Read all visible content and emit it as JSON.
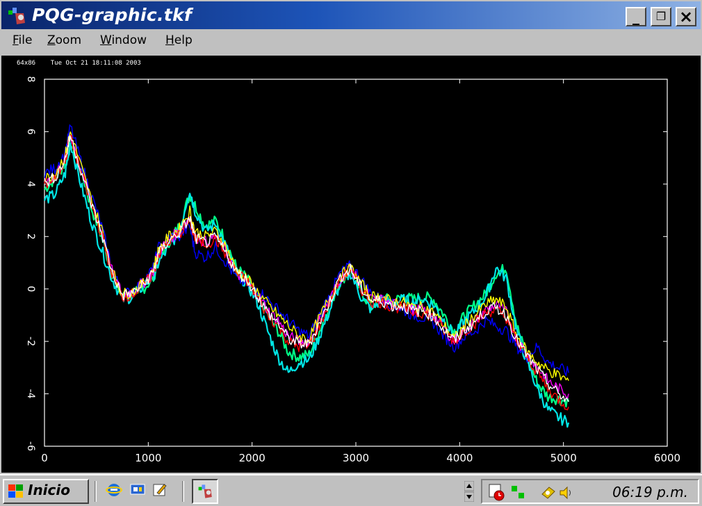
{
  "window": {
    "title": "PQG-graphic.tkf",
    "controls": {
      "minimize": "_",
      "maximize": "❐",
      "close": "×"
    }
  },
  "menu": [
    "File",
    "Zoom",
    "Window",
    "Help"
  ],
  "chart_header": "64x86    Tue Oct 21 18:11:08 2003",
  "chart_data": {
    "type": "line",
    "xlim": [
      0,
      6000
    ],
    "ylim": [
      -6,
      8
    ],
    "x_ticks": [
      "0",
      "1000",
      "2000",
      "3000",
      "4000",
      "5000",
      "6000"
    ],
    "y_ticks": [
      "-6",
      "-4",
      "-2",
      "0",
      "2",
      "4",
      "6",
      "8"
    ],
    "grid": false,
    "background": "#000000",
    "series_colors": [
      "#00ff88",
      "#00e5e5",
      "#0000ff",
      "#ff00ff",
      "#ffff00",
      "#ff0000",
      "#ffffff"
    ],
    "series": [
      {
        "color": "#00ff88",
        "x": [
          0,
          100,
          200,
          250,
          350,
          450,
          550,
          650,
          750,
          850,
          950,
          1050,
          1100,
          1200,
          1300,
          1400,
          1450,
          1550,
          1650,
          1750,
          1850,
          1950,
          2050,
          2150,
          2250,
          2350,
          2450,
          2550,
          2650,
          2750,
          2850,
          2950,
          3050,
          3150,
          3250,
          3350,
          3450,
          3550,
          3650,
          3750,
          3850,
          3950,
          4050,
          4150,
          4250,
          4350,
          4450,
          4550,
          4650,
          4750,
          4850,
          4950,
          5050
        ],
        "y": [
          3.8,
          4.2,
          4.8,
          5.5,
          4.6,
          3.1,
          2.0,
          0.6,
          -0.3,
          -0.2,
          0.0,
          0.4,
          1.2,
          1.8,
          2.4,
          3.6,
          3.2,
          2.4,
          2.6,
          1.8,
          0.8,
          0.4,
          -0.3,
          -1.0,
          -1.6,
          -2.4,
          -2.6,
          -2.5,
          -1.6,
          -0.6,
          0.3,
          0.7,
          -0.1,
          -0.7,
          -0.3,
          -0.5,
          -0.3,
          -0.4,
          -0.3,
          -0.4,
          -1.0,
          -1.6,
          -1.0,
          -0.6,
          -0.2,
          0.6,
          0.8,
          -1.4,
          -2.6,
          -3.6,
          -4.1,
          -4.2,
          -4.3
        ]
      },
      {
        "color": "#00e5e5",
        "x": [
          0,
          100,
          200,
          250,
          350,
          450,
          550,
          650,
          750,
          850,
          950,
          1050,
          1100,
          1200,
          1300,
          1400,
          1450,
          1550,
          1650,
          1750,
          1850,
          1950,
          2050,
          2150,
          2250,
          2350,
          2450,
          2550,
          2650,
          2750,
          2850,
          2950,
          3050,
          3150,
          3250,
          3350,
          3450,
          3550,
          3650,
          3750,
          3850,
          3950,
          4050,
          4150,
          4250,
          4350,
          4450,
          4550,
          4650,
          4750,
          4850,
          4950,
          5050
        ],
        "y": [
          3.4,
          3.6,
          4.4,
          5.6,
          4.0,
          2.6,
          1.5,
          0.4,
          -0.4,
          -0.3,
          0.1,
          0.5,
          1.0,
          1.6,
          2.2,
          3.8,
          3.0,
          2.2,
          2.5,
          1.6,
          0.6,
          0.2,
          -0.5,
          -1.6,
          -2.6,
          -3.2,
          -2.8,
          -2.7,
          -1.8,
          -0.8,
          0.2,
          0.6,
          -0.3,
          -0.8,
          -0.4,
          -0.6,
          -0.4,
          -0.5,
          -0.4,
          -0.6,
          -1.2,
          -1.8,
          -1.2,
          -0.8,
          -0.3,
          0.8,
          0.4,
          -1.6,
          -2.8,
          -3.8,
          -4.6,
          -4.9,
          -5.1
        ]
      },
      {
        "color": "#0000ff",
        "x": [
          0,
          100,
          200,
          250,
          350,
          450,
          550,
          650,
          750,
          850,
          950,
          1050,
          1100,
          1200,
          1300,
          1400,
          1450,
          1550,
          1650,
          1750,
          1850,
          1950,
          2050,
          2150,
          2250,
          2350,
          2450,
          2550,
          2650,
          2750,
          2850,
          2950,
          3050,
          3150,
          3250,
          3350,
          3450,
          3550,
          3650,
          3750,
          3850,
          3950,
          4050,
          4150,
          4250,
          4350,
          4450,
          4550,
          4650,
          4750,
          4850,
          4950,
          5050
        ],
        "y": [
          4.4,
          4.6,
          5.2,
          6.2,
          4.9,
          3.6,
          2.4,
          0.8,
          -0.2,
          -0.1,
          0.3,
          0.8,
          1.6,
          2.0,
          2.0,
          2.4,
          1.4,
          1.2,
          1.6,
          1.0,
          0.4,
          0.2,
          0.0,
          -0.4,
          -0.8,
          -1.2,
          -1.6,
          -1.8,
          -1.0,
          -0.2,
          0.6,
          0.9,
          0.4,
          -0.2,
          -0.4,
          -0.6,
          -0.8,
          -1.0,
          -1.1,
          -1.3,
          -1.8,
          -2.2,
          -1.8,
          -1.6,
          -1.2,
          -1.4,
          -1.6,
          -2.2,
          -2.6,
          -2.2,
          -2.8,
          -3.0,
          -3.2
        ]
      },
      {
        "color": "#ff00ff",
        "x": [
          0,
          100,
          200,
          250,
          350,
          450,
          550,
          650,
          750,
          850,
          950,
          1050,
          1100,
          1200,
          1300,
          1400,
          1450,
          1550,
          1650,
          1750,
          1850,
          1950,
          2050,
          2150,
          2250,
          2350,
          2450,
          2550,
          2650,
          2750,
          2850,
          2950,
          3050,
          3150,
          3250,
          3350,
          3450,
          3550,
          3650,
          3750,
          3850,
          3950,
          4050,
          4150,
          4250,
          4350,
          4450,
          4550,
          4650,
          4750,
          4850,
          4950,
          5050
        ],
        "y": [
          4.1,
          4.3,
          5.0,
          5.9,
          4.6,
          3.3,
          2.2,
          0.7,
          -0.2,
          -0.1,
          0.2,
          0.7,
          1.4,
          1.9,
          2.2,
          2.8,
          2.0,
          1.8,
          2.0,
          1.4,
          0.6,
          0.3,
          -0.2,
          -0.8,
          -1.2,
          -1.8,
          -2.0,
          -2.0,
          -1.2,
          -0.4,
          0.4,
          0.8,
          0.1,
          -0.4,
          -0.4,
          -0.6,
          -0.6,
          -0.8,
          -0.8,
          -1.0,
          -1.5,
          -2.0,
          -1.5,
          -1.2,
          -0.8,
          -0.6,
          -0.9,
          -1.9,
          -2.5,
          -3.0,
          -3.5,
          -3.8,
          -4.0
        ]
      },
      {
        "color": "#ffff00",
        "x": [
          0,
          100,
          200,
          250,
          350,
          450,
          550,
          650,
          750,
          850,
          950,
          1050,
          1100,
          1200,
          1300,
          1400,
          1450,
          1550,
          1650,
          1750,
          1850,
          1950,
          2050,
          2150,
          2250,
          2350,
          2450,
          2550,
          2650,
          2750,
          2850,
          2950,
          3050,
          3150,
          3250,
          3350,
          3450,
          3550,
          3650,
          3750,
          3850,
          3950,
          4050,
          4150,
          4250,
          4350,
          4450,
          4550,
          4650,
          4750,
          4850,
          4950,
          5050
        ],
        "y": [
          4.2,
          4.4,
          5.1,
          6.0,
          4.7,
          3.4,
          2.3,
          0.7,
          -0.2,
          -0.1,
          0.2,
          0.8,
          1.5,
          2.0,
          2.3,
          3.0,
          2.2,
          2.0,
          2.2,
          1.6,
          0.7,
          0.4,
          -0.1,
          -0.6,
          -1.0,
          -1.4,
          -1.8,
          -1.9,
          -1.1,
          -0.3,
          0.5,
          0.8,
          0.2,
          -0.3,
          -0.3,
          -0.5,
          -0.5,
          -0.7,
          -0.7,
          -0.9,
          -1.4,
          -1.9,
          -1.4,
          -1.0,
          -0.6,
          -0.4,
          -0.7,
          -1.8,
          -2.4,
          -2.8,
          -3.1,
          -3.3,
          -3.5
        ]
      },
      {
        "color": "#ff0000",
        "x": [
          0,
          100,
          200,
          250,
          350,
          450,
          550,
          650,
          750,
          850,
          950,
          1050,
          1100,
          1200,
          1300,
          1400,
          1450,
          1550,
          1650,
          1750,
          1850,
          1950,
          2050,
          2150,
          2250,
          2350,
          2450,
          2550,
          2650,
          2750,
          2850,
          2950,
          3050,
          3150,
          3250,
          3350,
          3450,
          3550,
          3650,
          3750,
          3850,
          3950,
          4050,
          4150,
          4250,
          4350,
          4450,
          4550,
          4650,
          4750,
          4850,
          4950,
          5050
        ],
        "y": [
          4.0,
          4.2,
          4.9,
          5.8,
          4.5,
          3.2,
          2.1,
          0.6,
          -0.3,
          -0.2,
          0.1,
          0.6,
          1.3,
          1.8,
          2.1,
          2.6,
          1.9,
          1.7,
          1.9,
          1.3,
          0.6,
          0.3,
          -0.3,
          -1.0,
          -1.4,
          -2.0,
          -2.2,
          -2.2,
          -1.4,
          -0.5,
          0.4,
          0.7,
          0.0,
          -0.5,
          -0.5,
          -0.7,
          -0.7,
          -0.9,
          -0.9,
          -1.1,
          -1.6,
          -2.0,
          -1.6,
          -1.3,
          -0.9,
          -0.8,
          -1.1,
          -2.0,
          -2.6,
          -3.2,
          -3.8,
          -4.2,
          -4.5
        ]
      },
      {
        "color": "#ffffff",
        "x": [
          0,
          100,
          200,
          250,
          350,
          450,
          550,
          650,
          750,
          850,
          950,
          1050,
          1100,
          1200,
          1300,
          1400,
          1450,
          1550,
          1650,
          1750,
          1850,
          1950,
          2050,
          2150,
          2250,
          2350,
          2450,
          2550,
          2650,
          2750,
          2850,
          2950,
          3050,
          3150,
          3250,
          3350,
          3450,
          3550,
          3650,
          3750,
          3850,
          3950,
          4050,
          4150,
          4250,
          4350,
          4450,
          4550,
          4650,
          4750,
          4850,
          4950,
          5050
        ],
        "y": [
          4.05,
          4.25,
          4.95,
          5.85,
          4.55,
          3.25,
          2.15,
          0.65,
          -0.25,
          -0.15,
          0.15,
          0.65,
          1.35,
          1.85,
          2.15,
          2.7,
          1.95,
          1.75,
          1.95,
          1.35,
          0.65,
          0.35,
          -0.25,
          -0.9,
          -1.3,
          -1.9,
          -2.1,
          -2.1,
          -1.3,
          -0.45,
          0.45,
          0.75,
          0.05,
          -0.45,
          -0.45,
          -0.65,
          -0.65,
          -0.85,
          -0.85,
          -1.05,
          -1.55,
          -2.0,
          -1.55,
          -1.25,
          -0.85,
          -0.7,
          -1.0,
          -1.95,
          -2.55,
          -3.1,
          -3.6,
          -4.0,
          -4.3
        ]
      }
    ]
  },
  "taskbar": {
    "start_label": "Inicio",
    "quicklaunch_icons": [
      "ie-icon",
      "desktop-icon",
      "edit-icon"
    ],
    "active_task_icon": "pqg-app-icon",
    "tray_icons": [
      "scheduler-icon",
      "network-icon",
      "security-icon",
      "volume-icon"
    ],
    "clock": "06:19 p.m."
  }
}
